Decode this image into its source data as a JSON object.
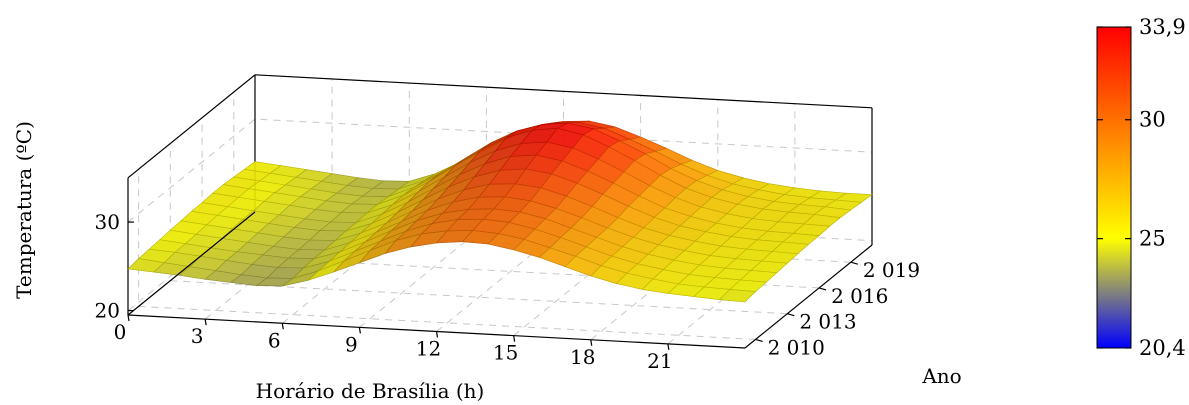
{
  "chart_data": {
    "type": "surface",
    "xlabel": "Horário de Brasília (h)",
    "ylabel": "Ano",
    "zlabel": "Temperatura (ºC)",
    "x_ticks": [
      "0",
      "3",
      "6",
      "9",
      "12",
      "15",
      "18",
      "21"
    ],
    "y_ticks": [
      "2 010",
      "2 013",
      "2 016",
      "2 019"
    ],
    "z_ticks": [
      "20",
      "30"
    ],
    "colorbar_ticks": [
      "33,9",
      "30",
      "25",
      "20,4"
    ],
    "xlim": [
      0,
      24
    ],
    "ylim": [
      2009,
      2021
    ],
    "zlim": [
      19.5,
      35
    ],
    "colorbar_range": [
      20.4,
      33.9
    ],
    "colormap": [
      "#0000ff",
      "#ffff00",
      "#ff0000"
    ],
    "hours": [
      0,
      1,
      2,
      3,
      4,
      5,
      6,
      7,
      8,
      9,
      10,
      11,
      12,
      13,
      14,
      15,
      16,
      17,
      18,
      19,
      20,
      21,
      22,
      23,
      24
    ],
    "years": [
      2009,
      2010,
      2011,
      2012,
      2013,
      2014,
      2015,
      2016,
      2017,
      2018,
      2019,
      2020,
      2021
    ],
    "temperature_grid": [
      [
        24.7,
        24.5,
        24.3,
        24.0,
        23.8,
        23.6,
        23.7,
        24.5,
        25.6,
        26.8,
        28.0,
        28.9,
        29.5,
        29.8,
        29.7,
        29.2,
        28.5,
        27.6,
        26.7,
        26.0,
        25.5,
        25.2,
        25.0,
        24.8,
        24.7
      ],
      [
        24.9,
        24.6,
        24.3,
        24.0,
        23.7,
        23.5,
        23.6,
        24.6,
        25.9,
        27.2,
        28.5,
        29.4,
        29.9,
        30.1,
        29.9,
        29.4,
        28.6,
        27.8,
        26.9,
        26.2,
        25.7,
        25.3,
        25.1,
        25.0,
        24.9
      ],
      [
        25.0,
        24.8,
        24.5,
        24.2,
        23.9,
        23.7,
        23.8,
        24.7,
        26.0,
        27.3,
        28.6,
        29.6,
        30.2,
        30.4,
        30.2,
        29.6,
        28.8,
        27.9,
        27.0,
        26.3,
        25.8,
        25.4,
        25.2,
        25.1,
        25.0
      ],
      [
        25.1,
        24.8,
        24.5,
        24.2,
        24.0,
        23.8,
        23.9,
        24.8,
        26.1,
        27.5,
        28.8,
        29.8,
        30.4,
        30.6,
        30.4,
        29.8,
        28.9,
        28.0,
        27.1,
        26.4,
        25.9,
        25.5,
        25.3,
        25.2,
        25.1
      ],
      [
        25.2,
        24.9,
        24.6,
        24.3,
        24.0,
        23.8,
        23.9,
        24.9,
        26.2,
        27.6,
        29.0,
        30.1,
        30.8,
        31.0,
        30.7,
        30.0,
        29.1,
        28.1,
        27.2,
        26.5,
        26.0,
        25.6,
        25.4,
        25.3,
        25.2
      ],
      [
        25.3,
        25.0,
        24.7,
        24.4,
        24.1,
        23.9,
        24.0,
        25.0,
        26.3,
        27.8,
        29.3,
        30.5,
        31.3,
        31.5,
        31.2,
        30.4,
        29.4,
        28.3,
        27.3,
        26.6,
        26.1,
        25.7,
        25.5,
        25.4,
        25.3
      ],
      [
        25.4,
        25.1,
        24.8,
        24.5,
        24.2,
        24.0,
        24.1,
        25.1,
        26.5,
        28.1,
        29.7,
        31.0,
        31.9,
        32.2,
        31.8,
        30.9,
        29.8,
        28.6,
        27.5,
        26.7,
        26.2,
        25.8,
        25.6,
        25.5,
        25.4
      ],
      [
        25.4,
        25.1,
        24.8,
        24.5,
        24.2,
        24.0,
        24.1,
        25.2,
        26.7,
        28.4,
        30.1,
        31.5,
        32.5,
        32.8,
        32.3,
        31.3,
        30.1,
        28.8,
        27.6,
        26.8,
        26.2,
        25.8,
        25.6,
        25.5,
        25.4
      ],
      [
        25.5,
        25.2,
        24.9,
        24.6,
        24.3,
        24.1,
        24.2,
        25.3,
        26.9,
        28.7,
        30.5,
        32.0,
        33.0,
        33.3,
        32.8,
        31.7,
        30.4,
        29.0,
        27.8,
        26.9,
        26.3,
        25.9,
        25.7,
        25.6,
        25.5
      ],
      [
        25.5,
        25.2,
        24.9,
        24.6,
        24.3,
        24.1,
        24.2,
        25.4,
        27.1,
        29.0,
        30.9,
        32.5,
        33.5,
        33.9,
        33.3,
        32.1,
        30.7,
        29.2,
        27.9,
        27.0,
        26.4,
        26.0,
        25.8,
        25.7,
        25.5
      ],
      [
        25.4,
        25.1,
        24.8,
        24.5,
        24.2,
        24.0,
        24.1,
        25.3,
        27.0,
        28.9,
        30.8,
        32.3,
        33.2,
        33.5,
        33.0,
        31.8,
        30.5,
        29.0,
        27.8,
        26.9,
        26.3,
        25.9,
        25.7,
        25.6,
        25.4
      ],
      [
        25.3,
        25.0,
        24.7,
        24.4,
        24.1,
        23.9,
        24.0,
        25.1,
        26.7,
        28.5,
        30.2,
        31.6,
        32.4,
        32.6,
        32.1,
        31.0,
        29.8,
        28.5,
        27.4,
        26.6,
        26.1,
        25.7,
        25.5,
        25.4,
        25.3
      ],
      [
        25.2,
        24.9,
        24.6,
        24.3,
        24.0,
        23.8,
        23.9,
        24.9,
        26.4,
        28.0,
        29.6,
        30.9,
        31.6,
        31.8,
        31.3,
        30.3,
        29.2,
        28.0,
        27.0,
        26.3,
        25.8,
        25.5,
        25.3,
        25.2,
        25.2
      ]
    ]
  }
}
